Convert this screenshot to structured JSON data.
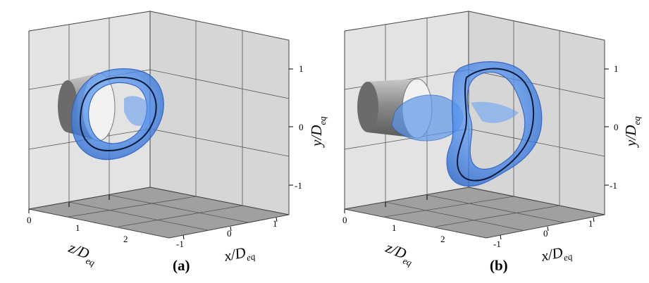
{
  "panels": [
    {
      "label": "(a)",
      "x_axis": {
        "main": "x/D",
        "sub": "eq",
        "ticks": [
          "-1",
          "0",
          "1"
        ]
      },
      "y_axis": {
        "main": "y/D",
        "sub": "eq",
        "ticks": [
          "1",
          "0",
          "-1"
        ]
      },
      "z_axis": {
        "main": "z/D",
        "sub": "eq",
        "ticks": [
          "0",
          "1",
          "2"
        ]
      }
    },
    {
      "label": "(b)",
      "x_axis": {
        "main": "x/D",
        "sub": "eq",
        "ticks": [
          "-1",
          "0",
          "1"
        ]
      },
      "y_axis": {
        "main": "y/D",
        "sub": "eq",
        "ticks": [
          "1",
          "0",
          "-1"
        ]
      },
      "z_axis": {
        "main": "z/D",
        "sub": "eq",
        "ticks": [
          "0",
          "1",
          "2"
        ]
      }
    }
  ],
  "colors": {
    "left_wall": "#e3e3e3",
    "right_wall": "#d6d6d6",
    "floor": "#a0a0a0",
    "isosurface": "#3f7fe0",
    "isosurface_light": "#7fb2f5",
    "vortex_core": "#0a1a3a"
  }
}
